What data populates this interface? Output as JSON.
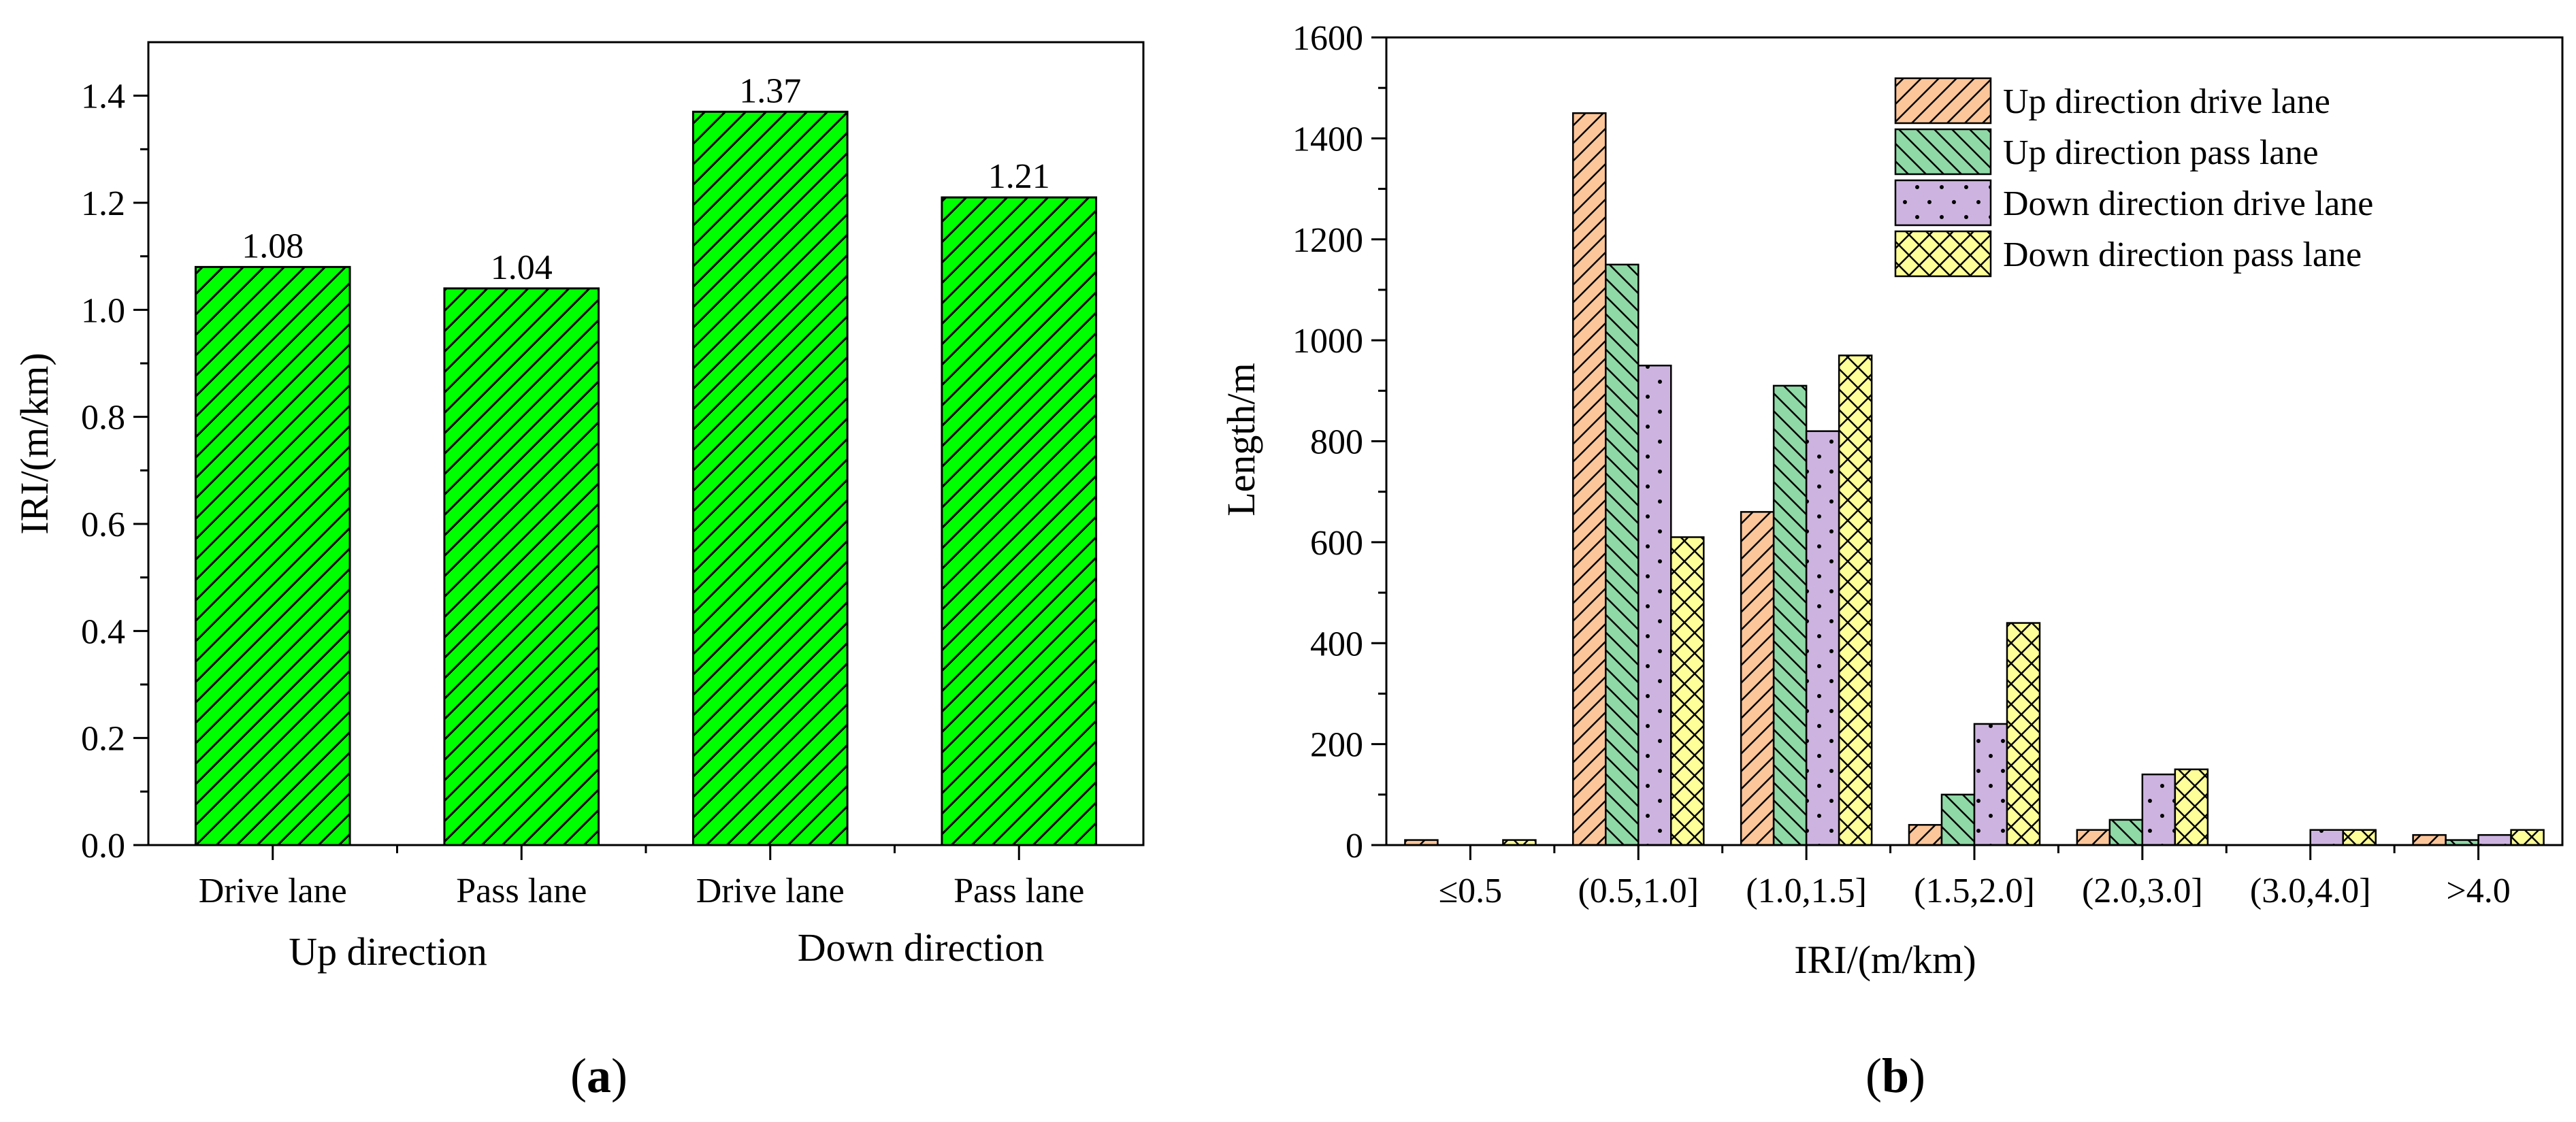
{
  "panel_labels": {
    "a": {
      "open": "(",
      "letter": "a",
      "close": ")"
    },
    "b": {
      "open": "(",
      "letter": "b",
      "close": ")"
    }
  },
  "chart_data": [
    {
      "type": "bar",
      "panel": "a",
      "categories": [
        "Drive lane",
        "Pass lane",
        "Drive lane",
        "Pass lane"
      ],
      "groups": [
        {
          "label": "Up direction",
          "categories": [
            0,
            1
          ]
        },
        {
          "label": "Down direction",
          "categories": [
            2,
            3
          ]
        }
      ],
      "values": [
        1.08,
        1.04,
        1.37,
        1.21
      ],
      "data_labels": [
        "1.08",
        "1.04",
        "1.37",
        "1.21"
      ],
      "ylabel": "IRI/(m/km)",
      "xlabel": "",
      "ylim": [
        0,
        1.5
      ],
      "yticks": [
        0.0,
        0.2,
        0.4,
        0.6,
        0.8,
        1.0,
        1.2,
        1.4
      ],
      "ytick_labels": [
        "0.0",
        "0.2",
        "0.4",
        "0.6",
        "0.8",
        "1.0",
        "1.2",
        "1.4"
      ],
      "bar_color": "#00ff00",
      "hatch": "diagonal",
      "grid": false
    },
    {
      "type": "bar",
      "panel": "b",
      "categories": [
        "≤0.5",
        "(0.5,1.0]",
        "(1.0,1.5]",
        "(1.5,2.0]",
        "(2.0,3.0]",
        "(3.0,4.0]",
        ">4.0"
      ],
      "series": [
        {
          "name": "Up direction drive lane",
          "values": [
            10,
            1450,
            660,
            40,
            30,
            0,
            20
          ],
          "color": "#fdc69a",
          "hatch": "diagonal"
        },
        {
          "name": "Up direction pass lane",
          "values": [
            0,
            1150,
            910,
            100,
            50,
            0,
            10
          ],
          "color": "#8fd9a6",
          "hatch": "back-diagonal"
        },
        {
          "name": "Down direction drive lane",
          "values": [
            0,
            950,
            820,
            240,
            140,
            30,
            20
          ],
          "color": "#cdb4e0",
          "hatch": "dots"
        },
        {
          "name": "Down direction pass lane",
          "values": [
            10,
            610,
            970,
            440,
            150,
            30,
            30
          ],
          "color": "#ffff99",
          "hatch": "crosshatch"
        }
      ],
      "ylabel": "Length/m",
      "xlabel": "IRI/(m/km)",
      "ylim": [
        0,
        1600
      ],
      "yticks": [
        0,
        200,
        400,
        600,
        800,
        1000,
        1200,
        1400,
        1600
      ],
      "ytick_labels": [
        "0",
        "200",
        "400",
        "600",
        "800",
        "1000",
        "1200",
        "1400",
        "1600"
      ],
      "legend_position": "top-right",
      "grid": false
    }
  ]
}
